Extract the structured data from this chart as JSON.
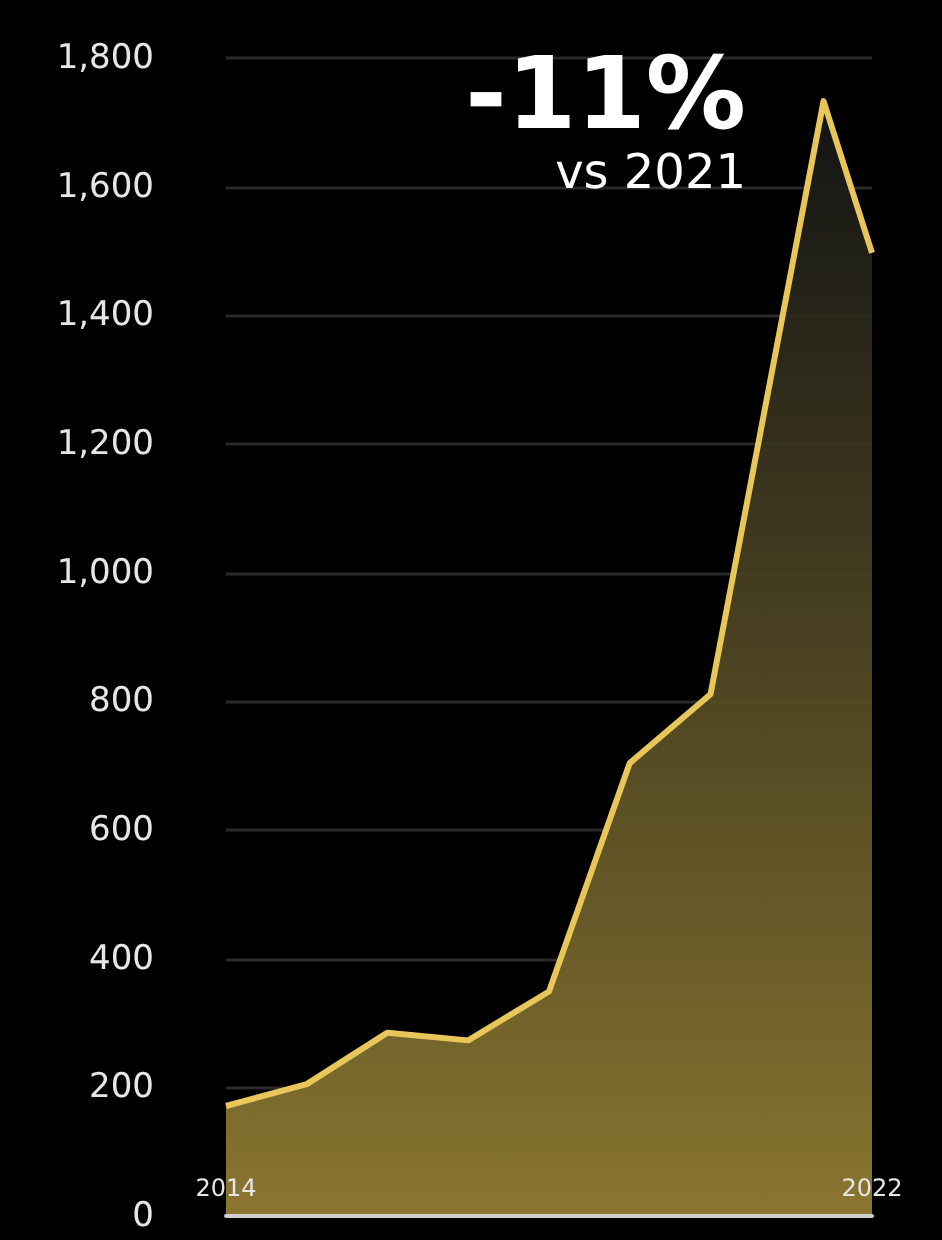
{
  "chart_data": {
    "type": "area",
    "x": [
      2014,
      2015,
      2016,
      2017,
      2018,
      2019,
      2020,
      2021.4,
      2022
    ],
    "values": [
      171,
      205,
      285,
      273,
      349,
      704,
      811,
      1733,
      1497
    ],
    "color": "#e8c659",
    "xlim": [
      2014,
      2022
    ],
    "xticks": [
      {
        "value": 2014,
        "label": "2014"
      },
      {
        "value": 2022,
        "label": "2022"
      }
    ],
    "ylim": [
      0,
      1800
    ],
    "yticks": [
      0,
      200,
      400,
      600,
      800,
      {
        "value": 1000,
        "label": "1,000"
      },
      {
        "value": 1200,
        "label": "1,200"
      },
      {
        "value": 1400,
        "label": "1,400"
      },
      {
        "value": 1600,
        "label": "1,600"
      },
      {
        "value": 1800,
        "label": "1,800"
      }
    ],
    "grid": "y",
    "marker": "none",
    "annotations": [
      "-11%",
      "vs 2021"
    ]
  }
}
